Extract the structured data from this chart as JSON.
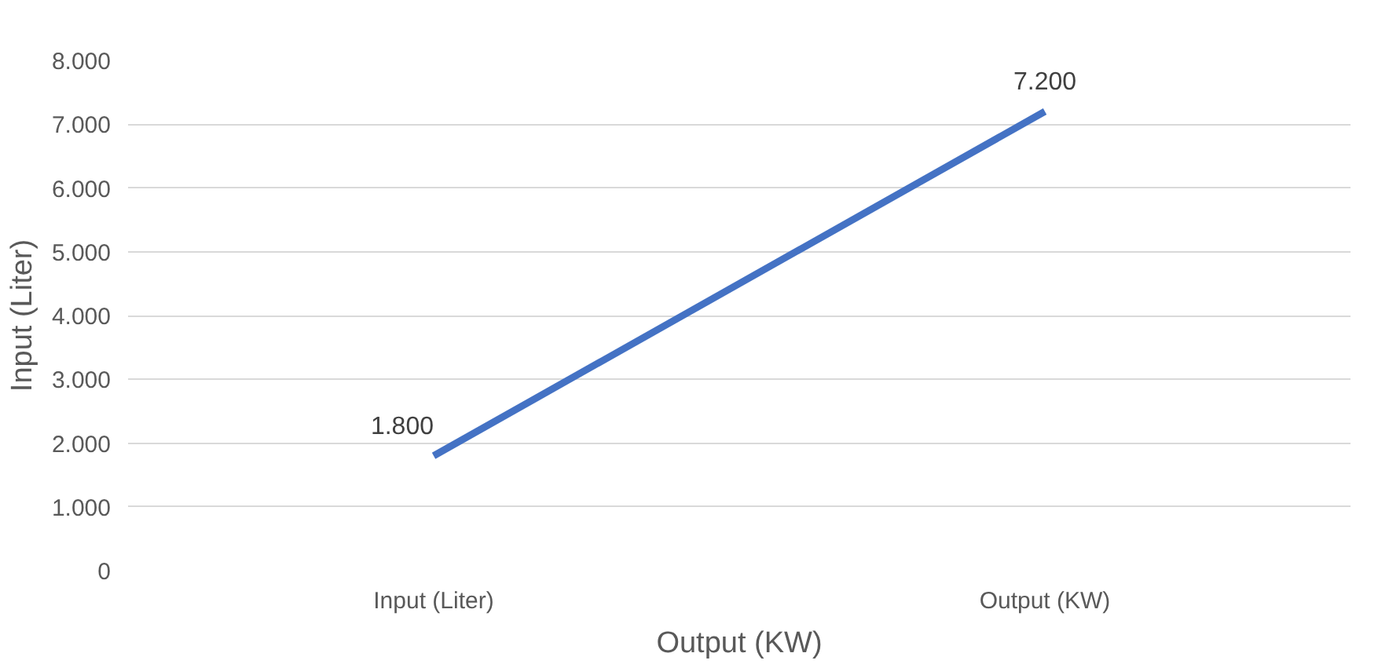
{
  "chart_data": {
    "type": "line",
    "xlabel": "Output (KW)",
    "ylabel": "Input (Liter)",
    "categories": [
      "Input (Liter)",
      "Output (KW)"
    ],
    "series": [
      {
        "color": "#4472c4",
        "values": [
          1800,
          7200
        ],
        "value_labels": [
          "1.800",
          "7.200"
        ]
      }
    ],
    "ylim": [
      0,
      8000
    ],
    "yticks": [
      {
        "value": 0,
        "label": "0"
      },
      {
        "value": 1000,
        "label": "1.000"
      },
      {
        "value": 2000,
        "label": "2.000"
      },
      {
        "value": 3000,
        "label": "3.000"
      },
      {
        "value": 4000,
        "label": "4.000"
      },
      {
        "value": 5000,
        "label": "5.000"
      },
      {
        "value": 6000,
        "label": "6.000"
      },
      {
        "value": 7000,
        "label": "7.000"
      },
      {
        "value": 8000,
        "label": "8.000"
      }
    ],
    "grid": "y",
    "marker": "none",
    "line_style": "solid"
  }
}
